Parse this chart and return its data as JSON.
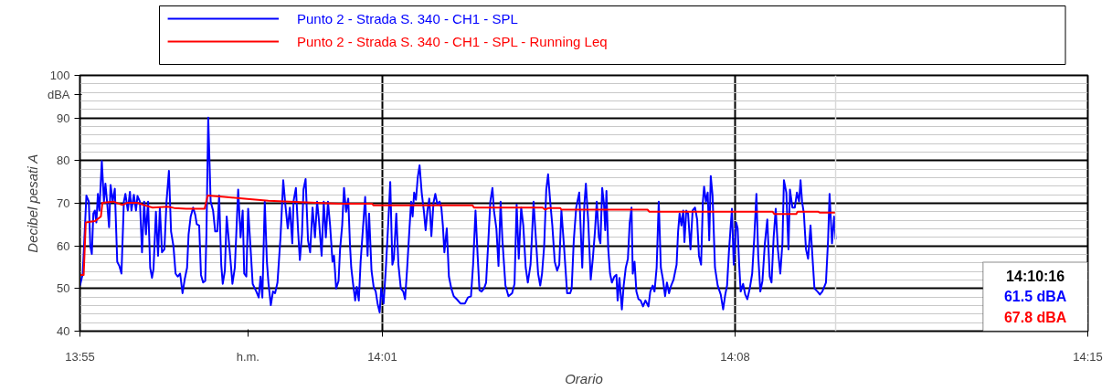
{
  "chart_data": {
    "type": "line",
    "xlabel": "Orario",
    "ylabel": "Decibel pesati A",
    "xlim": [
      13.91667,
      14.25
    ],
    "xticks": [
      {
        "value": 13.91667,
        "label": "13:55"
      },
      {
        "value": 14.01667,
        "label": "14:01"
      },
      {
        "value": 14.13333,
        "label": "14:08"
      },
      {
        "value": 14.25,
        "label": "14:15"
      }
    ],
    "ylim": [
      40,
      100
    ],
    "yticks": [
      40,
      50,
      60,
      70,
      80,
      90,
      100
    ],
    "grid": true,
    "legend": "top",
    "line_style": "solid",
    "ref_lines": [
      {
        "axis": "x",
        "value": 14.1666,
        "color": "#d9d9d9"
      }
    ],
    "annotations": [
      "dBA",
      "h.m.",
      "14:10:16",
      "61.5 dBA",
      "67.8 dBA"
    ],
    "series": [
      {
        "name": "Punto 2 - Strada S. 340 - CH1 - SPL",
        "color": "#0000ff",
        "x": [
          13.9167,
          13.9176,
          13.9188,
          13.9196,
          13.9201,
          13.9206,
          13.9211,
          13.9216,
          13.9221,
          13.9226,
          13.9231,
          13.9239,
          13.9246,
          13.9251,
          13.9258,
          13.9263,
          13.9268,
          13.9275,
          13.9282,
          13.929,
          13.9297,
          13.9304,
          13.9312,
          13.9317,
          13.9325,
          13.9332,
          13.9337,
          13.9345,
          13.9352,
          13.9357,
          13.9365,
          13.9372,
          13.9379,
          13.9385,
          13.9392,
          13.9399,
          13.9405,
          13.941,
          13.9418,
          13.9425,
          13.9431,
          13.9438,
          13.9446,
          13.9453,
          13.9461,
          13.9468,
          13.9476,
          13.9483,
          13.949,
          13.9498,
          13.9506,
          13.9513,
          13.9521,
          13.9526,
          13.9533,
          13.9541,
          13.9548,
          13.9553,
          13.9561,
          13.9567,
          13.9574,
          13.9581,
          13.9585,
          13.9591,
          13.9599,
          13.9607,
          13.9614,
          13.9621,
          13.9627,
          13.9634,
          13.9639,
          13.9646,
          13.9652,
          13.9659,
          13.9665,
          13.9671,
          13.9679,
          13.969,
          13.9698,
          13.9705,
          13.971,
          13.9717,
          13.9723,
          13.973,
          13.9738,
          13.975,
          13.9758,
          13.9764,
          13.977,
          13.9778,
          13.9785,
          13.979,
          13.9798,
          13.9805,
          13.9812,
          13.982,
          13.983,
          13.9839,
          13.9846,
          13.9854,
          13.9861,
          13.9869,
          13.9873,
          13.9881,
          13.9888,
          13.9894,
          13.9901,
          13.9906,
          13.9913,
          13.9921,
          13.9928,
          13.9936,
          13.9944,
          13.9951,
          13.9957,
          13.9966,
          13.9973,
          13.998,
          13.9987,
          13.9994,
          14.0002,
          14.0007,
          14.0014,
          14.0022,
          14.0027,
          14.0034,
          14.004,
          14.0047,
          14.0054,
          14.006,
          14.0064,
          14.007,
          14.0077,
          14.0082,
          14.0089,
          14.0095,
          14.0102,
          14.011,
          14.0118,
          14.0123,
          14.0131,
          14.0138,
          14.0145,
          14.0151,
          14.0158,
          14.0163,
          14.0171,
          14.0178,
          14.0185,
          14.0193,
          14.02,
          14.0205,
          14.0213,
          14.022,
          14.0228,
          14.0236,
          14.0242,
          14.0249,
          14.0256,
          14.0262,
          14.0267,
          14.0272,
          14.0278,
          14.0284,
          14.029,
          14.0297,
          14.0304,
          14.031,
          14.0316,
          14.0322,
          14.0329,
          14.0336,
          14.0342,
          14.0349,
          14.0356,
          14.0362,
          14.0367,
          14.0372,
          14.038,
          14.0387,
          14.0395,
          14.0403,
          14.0413,
          14.0425,
          14.044,
          14.045,
          14.046,
          14.0467,
          14.0475,
          14.0482,
          14.0488,
          14.0495,
          14.0503,
          14.051,
          14.0518,
          14.0524,
          14.0531,
          14.0536,
          14.0544,
          14.0551,
          14.0558,
          14.0564,
          14.0574,
          14.0584,
          14.0596,
          14.0604,
          14.0611,
          14.0618,
          14.0626,
          14.0633,
          14.0641,
          14.0648,
          14.0657,
          14.0662,
          14.0667,
          14.0675,
          14.0682,
          14.0689,
          14.0695,
          14.0702,
          14.0709,
          14.0715,
          14.0722,
          14.0729,
          14.0737,
          14.0745,
          14.0752,
          14.0759,
          14.0767,
          14.0778,
          14.0788,
          14.0793,
          14.08,
          14.0808,
          14.0818,
          14.0828,
          14.0835,
          14.084,
          14.0848,
          14.0856,
          14.0863,
          14.087,
          14.0876,
          14.0883,
          14.0888,
          14.0894,
          14.09,
          14.0904,
          14.0908,
          14.0914,
          14.092,
          14.0926,
          14.0934,
          14.0941,
          14.0945,
          14.0951,
          14.0959,
          14.0965,
          14.0972,
          14.0979,
          14.0985,
          14.0991,
          14.0995,
          14.1001,
          14.1007,
          14.1014,
          14.1021,
          14.1029,
          14.1037,
          14.1047,
          14.1053,
          14.1061,
          14.1067,
          14.1074,
          14.1081,
          14.1088,
          14.1095,
          14.1102,
          14.1108,
          14.1115,
          14.1122,
          14.113,
          14.114,
          14.1145,
          14.115,
          14.1156,
          14.1162,
          14.1166,
          14.1172,
          14.1178,
          14.1186,
          14.1193,
          14.1201,
          14.1208,
          14.1214,
          14.1221,
          14.1227,
          14.1231,
          14.1237,
          14.1243,
          14.1248,
          14.1253,
          14.1259,
          14.1267,
          14.1276,
          14.1286,
          14.1294,
          14.1301,
          14.1307,
          14.1313,
          14.1323,
          14.1329,
          14.1337,
          14.1342,
          14.1347,
          14.1352,
          14.136,
          14.1367,
          14.1374,
          14.1382,
          14.139,
          14.1397,
          14.1404,
          14.141,
          14.1417,
          14.1424,
          14.1432,
          14.144,
          14.1448,
          14.1454,
          14.1461,
          14.1468,
          14.1475,
          14.1483,
          14.149,
          14.1495,
          14.1503,
          14.151,
          14.1515,
          14.1523,
          14.1531,
          14.1538,
          14.1545,
          14.155,
          14.1555,
          14.1561,
          14.1568,
          14.1575,
          14.1583,
          14.1591,
          14.1596,
          14.1606,
          14.1614,
          14.1622,
          14.1634,
          14.1641,
          14.1646,
          14.1654,
          14.1661,
          14.1666
        ],
        "values": [
          50.7,
          53.5,
          71.8,
          70.4,
          59.9,
          58.1,
          67.6,
          68.3,
          65.5,
          72.2,
          68.3,
          79.9,
          70.4,
          74.6,
          69.0,
          64.4,
          74.3,
          70.4,
          73.4,
          56.3,
          55.3,
          53.5,
          70.4,
          72.2,
          68.3,
          72.7,
          68.3,
          72.0,
          68.3,
          71.7,
          70.4,
          58.5,
          70.4,
          62.7,
          70.4,
          54.9,
          52.5,
          54.6,
          68.0,
          57.7,
          69.0,
          58.5,
          59.2,
          70.4,
          77.6,
          63.4,
          59.9,
          53.5,
          52.8,
          53.5,
          48.9,
          52.1,
          54.9,
          62.7,
          66.9,
          69.0,
          67.3,
          65.1,
          64.8,
          53.2,
          51.4,
          51.8,
          62.7,
          90.1,
          70.4,
          68.3,
          63.4,
          63.4,
          71.8,
          55.6,
          51.1,
          54.2,
          66.9,
          61.3,
          56.3,
          51.1,
          54.9,
          73.2,
          62.0,
          68.3,
          53.5,
          52.8,
          68.7,
          60.6,
          51.1,
          49.3,
          47.9,
          52.8,
          47.9,
          70.4,
          56.3,
          51.4,
          46.1,
          49.3,
          48.9,
          51.4,
          62.0,
          75.4,
          69.7,
          64.1,
          69.0,
          60.6,
          70.4,
          73.6,
          63.7,
          56.7,
          62.7,
          73.2,
          75.7,
          61.3,
          58.5,
          69.0,
          62.0,
          70.4,
          66.2,
          57.7,
          70.4,
          62.0,
          70.4,
          64.8,
          56.3,
          57.7,
          50.0,
          51.8,
          59.2,
          64.8,
          73.6,
          68.0,
          71.1,
          59.9,
          54.9,
          51.1,
          47.2,
          50.4,
          47.2,
          56.3,
          63.4,
          71.5,
          57.7,
          67.6,
          54.2,
          50.4,
          49.3,
          46.5,
          44.4,
          50.0,
          46.5,
          54.2,
          63.4,
          75.0,
          55.6,
          57.0,
          67.6,
          55.6,
          50.0,
          49.3,
          47.5,
          54.9,
          63.4,
          70.4,
          66.9,
          72.5,
          70.8,
          76.1,
          78.9,
          72.5,
          68.3,
          63.7,
          68.3,
          71.1,
          62.3,
          70.1,
          72.2,
          69.7,
          70.4,
          69.0,
          64.8,
          58.5,
          64.1,
          52.8,
          50.0,
          48.2,
          47.5,
          46.5,
          46.5,
          47.9,
          48.2,
          55.6,
          68.3,
          57.7,
          49.6,
          49.3,
          50.0,
          51.4,
          62.0,
          70.4,
          73.6,
          68.3,
          64.1,
          55.3,
          70.4,
          61.3,
          50.7,
          48.2,
          48.9,
          51.1,
          69.7,
          57.0,
          69.0,
          64.8,
          54.9,
          51.4,
          55.6,
          62.7,
          70.4,
          61.3,
          53.5,
          50.7,
          53.5,
          59.9,
          73.2,
          76.8,
          70.4,
          64.8,
          56.3,
          54.2,
          55.6,
          68.3,
          60.6,
          48.9,
          48.9,
          50.0,
          61.3,
          69.0,
          72.5,
          54.9,
          69.7,
          74.6,
          65.5,
          52.1,
          57.0,
          63.4,
          70.4,
          62.0,
          60.6,
          73.6,
          69.7,
          63.7,
          72.9,
          59.2,
          53.5,
          51.4,
          52.8,
          53.2,
          47.2,
          52.5,
          45.1,
          50.7,
          54.9,
          57.0,
          65.5,
          69.0,
          53.5,
          56.3,
          49.3,
          47.5,
          47.2,
          45.8,
          47.2,
          45.8,
          49.3,
          50.7,
          49.3,
          54.9,
          70.4,
          54.9,
          52.1,
          48.2,
          51.4,
          48.9,
          50.7,
          52.1,
          55.6,
          63.4,
          67.6,
          64.8,
          68.3,
          60.9,
          68.3,
          67.6,
          59.2,
          68.3,
          69.0,
          66.2,
          57.7,
          55.6,
          70.4,
          73.9,
          70.4,
          72.5,
          61.3,
          76.4,
          71.8,
          54.9,
          50.7,
          48.6,
          45.1,
          48.6,
          50.7,
          58.5,
          68.7,
          55.6,
          65.5,
          64.1,
          55.6,
          49.3,
          51.1,
          48.6,
          47.5,
          50.0,
          53.5,
          62.0,
          72.2,
          57.7,
          49.3,
          51.8,
          60.6,
          66.2,
          52.8,
          51.4,
          62.0,
          68.7,
          59.2,
          53.5,
          60.6,
          75.4,
          72.5,
          59.2,
          73.2,
          69.0,
          69.0,
          72.5,
          70.4,
          75.4,
          70.4,
          67.6,
          59.2,
          57.0,
          64.8,
          55.6,
          50.0,
          49.3,
          48.6,
          49.3,
          51.4,
          61.3,
          72.2,
          60.6,
          66.9,
          61.5
        ]
      },
      {
        "name": "Punto 2 - Strada S. 340 - CH1 - SPL - Running Leq",
        "color": "#ff0000",
        "x": [
          13.9167,
          13.9179,
          13.9186,
          13.9216,
          13.9236,
          13.9241,
          13.9277,
          13.9307,
          13.9322,
          13.9357,
          13.9377,
          13.9407,
          13.9458,
          13.9478,
          13.9518,
          13.9579,
          13.9589,
          13.9644,
          13.972,
          13.979,
          14.0022,
          14.0133,
          14.0138,
          14.0465,
          14.047,
          14.0697,
          14.0705,
          14.0717,
          14.0755,
          14.0759,
          14.0868,
          14.1044,
          14.105,
          14.1458,
          14.1463,
          14.1536,
          14.154,
          14.1609,
          14.1614,
          14.1666
        ],
        "values": [
          53.2,
          53.2,
          65.5,
          65.8,
          66.9,
          70.1,
          70.4,
          69.6,
          70.1,
          70.1,
          69.6,
          69.0,
          69.2,
          68.9,
          68.7,
          68.7,
          71.8,
          71.5,
          71.0,
          70.6,
          69.9,
          69.9,
          69.5,
          69.5,
          69.0,
          69.0,
          68.5,
          68.9,
          68.9,
          68.5,
          68.5,
          68.5,
          68.0,
          68.0,
          67.5,
          67.5,
          68.0,
          68.0,
          67.8,
          67.8
        ]
      }
    ]
  }
}
